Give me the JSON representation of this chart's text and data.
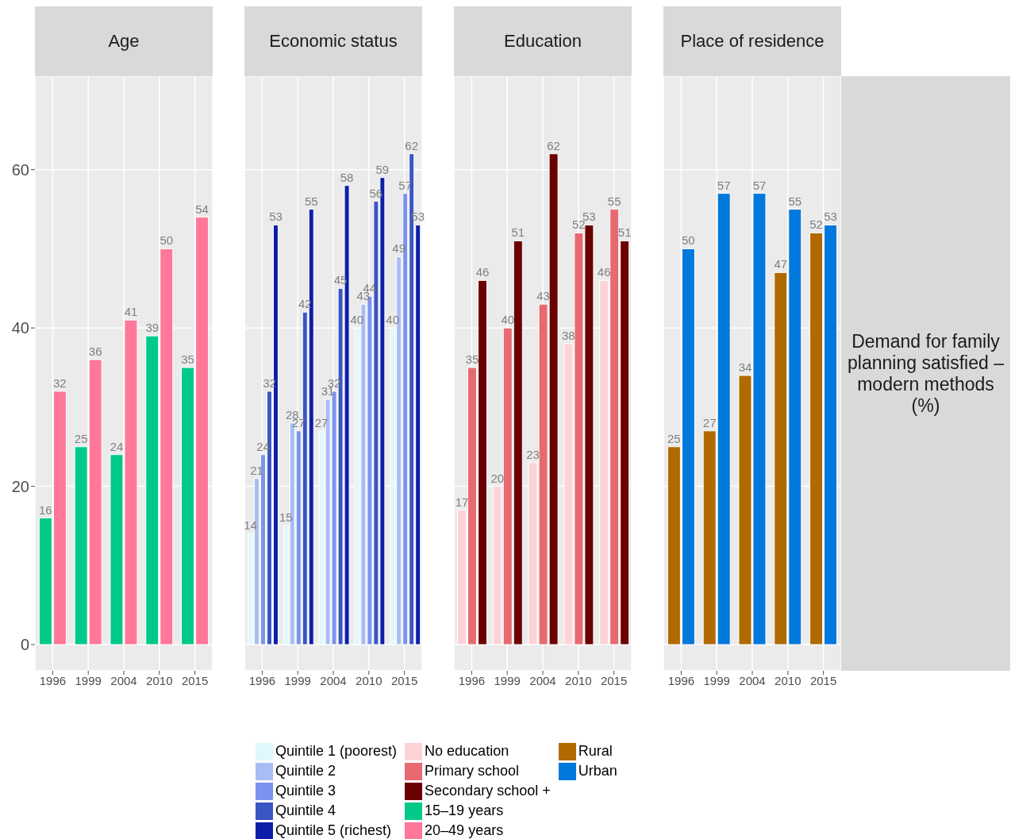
{
  "chart_data": [
    {
      "type": "bar",
      "title": "Age",
      "categories": [
        "1996",
        "1999",
        "2004",
        "2010",
        "2015"
      ],
      "series": [
        {
          "name": "15–19 years",
          "color": "#00c98a",
          "values": [
            16,
            25,
            24,
            39,
            35
          ]
        },
        {
          "name": "20–49 years",
          "color": "#ff7799",
          "values": [
            32,
            36,
            41,
            50,
            54
          ]
        }
      ],
      "ylim": [
        -3.3,
        71.8
      ],
      "yticks": [
        0,
        20,
        40,
        60
      ],
      "grid": true,
      "data_labels": true,
      "legend": "bottom"
    },
    {
      "type": "bar",
      "title": "Economic status",
      "categories": [
        "1996",
        "1999",
        "2004",
        "2010",
        "2015"
      ],
      "series": [
        {
          "name": "Quintile 1 (poorest)",
          "color": "#e0f8fc",
          "values": [
            14,
            15,
            27,
            40,
            40
          ]
        },
        {
          "name": "Quintile 2",
          "color": "#a8bdf5",
          "values": [
            21,
            28,
            31,
            43,
            49
          ]
        },
        {
          "name": "Quintile 3",
          "color": "#7b93ee",
          "values": [
            24,
            27,
            32,
            44,
            57
          ]
        },
        {
          "name": "Quintile 4",
          "color": "#3a55c4",
          "values": [
            32,
            42,
            45,
            56,
            62
          ]
        },
        {
          "name": "Quintile 5 (richest)",
          "color": "#0c1ea8",
          "values": [
            53,
            55,
            58,
            59,
            53
          ]
        }
      ],
      "ylim": [
        -3.3,
        71.8
      ],
      "yticks": [
        0,
        20,
        40,
        60
      ],
      "tick_labels": "x",
      "grid": true,
      "data_labels": true,
      "legend": "bottom"
    },
    {
      "type": "bar",
      "title": "Education",
      "categories": [
        "1996",
        "1999",
        "2004",
        "2010",
        "2015"
      ],
      "series": [
        {
          "name": "No education",
          "color": "#fdd3d8",
          "values": [
            17,
            20,
            23,
            38,
            46
          ]
        },
        {
          "name": "Primary school",
          "color": "#e66a70",
          "values": [
            35,
            40,
            43,
            52,
            55
          ]
        },
        {
          "name": "Secondary school +",
          "color": "#6b0000",
          "values": [
            46,
            51,
            62,
            53,
            51
          ]
        }
      ],
      "ylim": [
        -3.3,
        71.8
      ],
      "yticks": [
        0,
        20,
        40,
        60
      ],
      "tick_labels": "x",
      "grid": true,
      "data_labels": true,
      "legend": "bottom"
    },
    {
      "type": "bar",
      "title": "Place of residence",
      "categories": [
        "1996",
        "1999",
        "2004",
        "2010",
        "2015"
      ],
      "series": [
        {
          "name": "Rural",
          "color": "#b06a00",
          "values": [
            25,
            27,
            34,
            47,
            52
          ]
        },
        {
          "name": "Urban",
          "color": "#0078dc",
          "values": [
            50,
            57,
            57,
            55,
            53
          ]
        }
      ],
      "ylim": [
        -3.3,
        71.8
      ],
      "yticks": [
        0,
        20,
        40,
        60
      ],
      "tick_labels": "x",
      "grid": true,
      "data_labels": true,
      "legend": "bottom",
      "annotations": [
        "Demand for family planning satisfied – modern methods (%)"
      ]
    }
  ]
}
